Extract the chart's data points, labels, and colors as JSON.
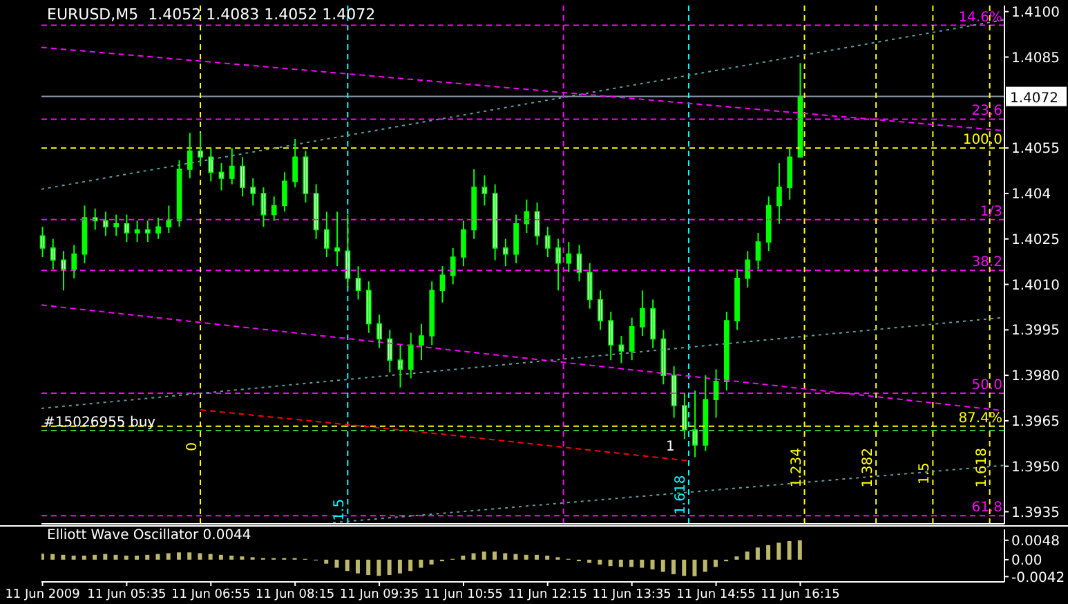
{
  "chart_data": [
    {
      "type": "candlestick",
      "title": "EURUSD,M5  1.4052 1.4083 1.4052 1.4072",
      "color": "#00ff00",
      "tick_labels": "y",
      "xlim": [
        "2009-06-11T04:14",
        "2009-06-11T19:29"
      ],
      "xticks": [
        "2009-06-11T04:15",
        "2009-06-11T05:35",
        "2009-06-11T06:55",
        "2009-06-11T08:15",
        "2009-06-11T09:35",
        "2009-06-11T10:55",
        "2009-06-11T12:15",
        "2009-06-11T13:35",
        "2009-06-11T14:55",
        "2009-06-11T16:15"
      ],
      "ylim": [
        1.3931,
        1.4102
      ],
      "yticks": [
        {
          "value": 1.41,
          "label": "1.4100"
        },
        1.4085,
        1.4055,
        1.404,
        1.4025,
        {
          "value": 1.401,
          "label": "1.4010"
        },
        1.3995,
        {
          "value": 1.398,
          "label": "1.3980"
        },
        1.3965,
        {
          "value": 1.395,
          "label": "1.3950"
        },
        1.3935
      ],
      "x": [
        "2009-06-11T04:15",
        "2009-06-11T04:25",
        "2009-06-11T04:35",
        "2009-06-11T04:45",
        "2009-06-11T04:55",
        "2009-06-11T05:05",
        "2009-06-11T05:15",
        "2009-06-11T05:25",
        "2009-06-11T05:35",
        "2009-06-11T05:45",
        "2009-06-11T05:55",
        "2009-06-11T06:05",
        "2009-06-11T06:15",
        "2009-06-11T06:25",
        "2009-06-11T06:35",
        "2009-06-11T06:45",
        "2009-06-11T06:55",
        "2009-06-11T07:05",
        "2009-06-11T07:15",
        "2009-06-11T07:25",
        "2009-06-11T07:35",
        "2009-06-11T07:45",
        "2009-06-11T07:55",
        "2009-06-11T08:05",
        "2009-06-11T08:15",
        "2009-06-11T08:25",
        "2009-06-11T08:35",
        "2009-06-11T08:45",
        "2009-06-11T08:55",
        "2009-06-11T09:05",
        "2009-06-11T09:15",
        "2009-06-11T09:25",
        "2009-06-11T09:35",
        "2009-06-11T09:45",
        "2009-06-11T09:55",
        "2009-06-11T10:05",
        "2009-06-11T10:15",
        "2009-06-11T10:25",
        "2009-06-11T10:35",
        "2009-06-11T10:45",
        "2009-06-11T10:55",
        "2009-06-11T11:05",
        "2009-06-11T11:15",
        "2009-06-11T11:25",
        "2009-06-11T11:35",
        "2009-06-11T11:45",
        "2009-06-11T11:55",
        "2009-06-11T12:05",
        "2009-06-11T12:15",
        "2009-06-11T12:25",
        "2009-06-11T12:35",
        "2009-06-11T12:45",
        "2009-06-11T12:55",
        "2009-06-11T13:05",
        "2009-06-11T13:15",
        "2009-06-11T13:25",
        "2009-06-11T13:35",
        "2009-06-11T13:45",
        "2009-06-11T13:55",
        "2009-06-11T14:05",
        "2009-06-11T14:15",
        "2009-06-11T14:25",
        "2009-06-11T14:35",
        "2009-06-11T14:45",
        "2009-06-11T14:55",
        "2009-06-11T15:05",
        "2009-06-11T15:15",
        "2009-06-11T15:25",
        "2009-06-11T15:35",
        "2009-06-11T15:45",
        "2009-06-11T15:55",
        "2009-06-11T16:05",
        "2009-06-11T16:15"
      ],
      "ohlc": [
        [
          1.4026,
          1.4029,
          1.4019,
          1.4022
        ],
        [
          1.4022,
          1.4025,
          1.4015,
          1.4018
        ],
        [
          1.4018,
          1.4021,
          1.4008,
          1.4015
        ],
        [
          1.4015,
          1.4023,
          1.4012,
          1.402
        ],
        [
          1.402,
          1.4036,
          1.4017,
          1.4032
        ],
        [
          1.4032,
          1.4035,
          1.4028,
          1.4031
        ],
        [
          1.4031,
          1.4034,
          1.4026,
          1.4029
        ],
        [
          1.4029,
          1.4033,
          1.4026,
          1.403
        ],
        [
          1.403,
          1.4033,
          1.4024,
          1.4027
        ],
        [
          1.4027,
          1.4031,
          1.4024,
          1.4028
        ],
        [
          1.4028,
          1.4031,
          1.4024,
          1.4027
        ],
        [
          1.4027,
          1.4032,
          1.4025,
          1.4029
        ],
        [
          1.4029,
          1.4036,
          1.4027,
          1.4031
        ],
        [
          1.4031,
          1.4051,
          1.4029,
          1.4048
        ],
        [
          1.4048,
          1.406,
          1.4045,
          1.4054
        ],
        [
          1.4054,
          1.406,
          1.4049,
          1.4052
        ],
        [
          1.4052,
          1.4055,
          1.4044,
          1.4047
        ],
        [
          1.4047,
          1.405,
          1.4041,
          1.4045
        ],
        [
          1.4045,
          1.4055,
          1.4043,
          1.4049
        ],
        [
          1.4049,
          1.4052,
          1.4039,
          1.4042
        ],
        [
          1.4042,
          1.4045,
          1.4036,
          1.404
        ],
        [
          1.404,
          1.4042,
          1.4029,
          1.4033
        ],
        [
          1.4033,
          1.4039,
          1.4031,
          1.4036
        ],
        [
          1.4036,
          1.4047,
          1.4034,
          1.4044
        ],
        [
          1.4044,
          1.4058,
          1.4042,
          1.4052
        ],
        [
          1.4052,
          1.4054,
          1.4037,
          1.404
        ],
        [
          1.404,
          1.4043,
          1.4025,
          1.4028
        ],
        [
          1.4028,
          1.4034,
          1.4019,
          1.4022
        ],
        [
          1.4022,
          1.4034,
          1.4016,
          1.4021
        ],
        [
          1.4021,
          1.4033,
          1.4009,
          1.4012
        ],
        [
          1.4012,
          1.4016,
          1.4005,
          1.4008
        ],
        [
          1.4008,
          1.4011,
          1.3994,
          1.3997
        ],
        [
          1.3997,
          1.4,
          1.3989,
          1.3992
        ],
        [
          1.3992,
          1.3995,
          1.3981,
          1.3985
        ],
        [
          1.3985,
          1.399,
          1.3976,
          1.3982
        ],
        [
          1.3982,
          1.3994,
          1.3979,
          1.399
        ],
        [
          1.399,
          1.3997,
          1.3985,
          1.3993
        ],
        [
          1.3993,
          1.4011,
          1.399,
          1.4008
        ],
        [
          1.4008,
          1.4016,
          1.4004,
          1.4013
        ],
        [
          1.4013,
          1.4022,
          1.401,
          1.4019
        ],
        [
          1.4019,
          1.4031,
          1.4016,
          1.4028
        ],
        [
          1.4028,
          1.4048,
          1.4025,
          1.4042
        ],
        [
          1.4042,
          1.4046,
          1.4036,
          1.404
        ],
        [
          1.404,
          1.4043,
          1.4018,
          1.4022
        ],
        [
          1.4022,
          1.4025,
          1.4016,
          1.402
        ],
        [
          1.402,
          1.4033,
          1.4017,
          1.403
        ],
        [
          1.403,
          1.4038,
          1.4027,
          1.4034
        ],
        [
          1.4034,
          1.4037,
          1.4023,
          1.4026
        ],
        [
          1.4026,
          1.4029,
          1.4019,
          1.4022
        ],
        [
          1.4022,
          1.4025,
          1.4008,
          1.4017
        ],
        [
          1.4017,
          1.4024,
          1.4014,
          1.402
        ],
        [
          1.402,
          1.4023,
          1.4011,
          1.4014
        ],
        [
          1.4014,
          1.4017,
          1.4002,
          1.4005
        ],
        [
          1.4005,
          1.4008,
          1.3995,
          1.3998
        ],
        [
          1.3998,
          1.4001,
          1.3985,
          1.399
        ],
        [
          1.399,
          1.3993,
          1.3984,
          1.3988
        ],
        [
          1.3988,
          1.3999,
          1.3985,
          1.3996
        ],
        [
          1.3996,
          1.4008,
          1.3993,
          1.4002
        ],
        [
          1.4002,
          1.4005,
          1.3989,
          1.3992
        ],
        [
          1.3992,
          1.3995,
          1.3977,
          1.398
        ],
        [
          1.398,
          1.3983,
          1.3966,
          1.397
        ],
        [
          1.397,
          1.3974,
          1.3959,
          1.3962
        ],
        [
          1.3962,
          1.3975,
          1.3953,
          1.3957
        ],
        [
          1.3957,
          1.398,
          1.3955,
          1.3972
        ],
        [
          1.3972,
          1.3982,
          1.3966,
          1.3978
        ],
        [
          1.3978,
          1.4001,
          1.3975,
          1.3998
        ],
        [
          1.3998,
          1.4015,
          1.3995,
          1.4012
        ],
        [
          1.4012,
          1.4021,
          1.4009,
          1.4018
        ],
        [
          1.4018,
          1.4027,
          1.4015,
          1.4024
        ],
        [
          1.4024,
          1.4039,
          1.4021,
          1.4036
        ],
        [
          1.4036,
          1.405,
          1.403,
          1.4042
        ],
        [
          1.4042,
          1.4055,
          1.4038,
          1.4052
        ],
        [
          1.4052,
          1.4083,
          1.4052,
          1.4072
        ]
      ],
      "series": [
        {
          "type": "line",
          "color": "#5f9ea0",
          "line_style": "dotted",
          "x": [
            "2009-06-11T04:14",
            "2009-06-11T19:29"
          ],
          "values": [
            1.40414,
            1.40973
          ]
        },
        {
          "type": "line",
          "color": "#5f9ea0",
          "line_style": "dotted",
          "x": [
            "2009-06-11T04:14",
            "2009-06-11T19:29"
          ],
          "values": [
            1.39691,
            1.39991
          ]
        },
        {
          "type": "line",
          "color": "#5f9ea0",
          "line_style": "dotted",
          "x": [
            "2009-06-11T08:51",
            "2009-06-11T19:29"
          ],
          "values": [
            1.39314,
            1.39503
          ]
        },
        {
          "type": "line",
          "color": "#ff00ff",
          "line_style": "dashed",
          "x": [
            "2009-06-11T04:14",
            "2009-06-11T19:29"
          ],
          "values": [
            1.40882,
            1.40607
          ]
        },
        {
          "type": "line",
          "color": "#ff00ff",
          "line_style": "dashed",
          "x": [
            "2009-06-11T04:14",
            "2009-06-11T19:29"
          ],
          "values": [
            1.40032,
            1.39683
          ]
        },
        {
          "type": "line",
          "color": "#ff0000",
          "line_style": "dashed",
          "x": [
            "2009-06-11T06:45",
            "2009-06-11T10:37",
            "2009-06-11T14:29"
          ],
          "values": [
            1.39686,
            1.39605,
            1.39518
          ]
        }
      ],
      "ref_lines": [
        {
          "axis": "y",
          "value": 1.40955,
          "color": "#ff00ff",
          "line_style": "dashed"
        },
        {
          "axis": "y",
          "value": 1.4072,
          "label": "1.4072",
          "color": "#8a96a8",
          "line_style": "solid"
        },
        {
          "axis": "y",
          "value": 1.40645,
          "color": "#ff00ff",
          "line_style": "dashed"
        },
        {
          "axis": "y",
          "value": 1.4055,
          "color": "#ffff00",
          "line_style": "dashed"
        },
        {
          "axis": "y",
          "value": 1.40314,
          "color": "#ff00ff",
          "line_style": "dashed"
        },
        {
          "axis": "y",
          "value": 1.40146,
          "color": "#ff00ff",
          "line_style": "dashed"
        },
        {
          "axis": "y",
          "value": 1.39741,
          "color": "#ff00ff",
          "line_style": "dashed"
        },
        {
          "axis": "y",
          "value": 1.39632,
          "color": "#ffff00",
          "line_style": "dashed"
        },
        {
          "axis": "y",
          "value": 1.39618,
          "color": "#32cd32",
          "line_style": "dashed"
        },
        {
          "axis": "y",
          "value": 1.39337,
          "color": "#ff00ff",
          "line_style": "dashed"
        },
        {
          "axis": "x",
          "value": "2009-06-11T06:45",
          "color": "#ffff00",
          "line_style": "dashed"
        },
        {
          "axis": "x",
          "value": "2009-06-11T09:05",
          "color": "#00ffff",
          "line_style": "dashed"
        },
        {
          "axis": "x",
          "value": "2009-06-11T12:30",
          "color": "#ff00ff",
          "line_style": "dashed"
        },
        {
          "axis": "x",
          "value": "2009-06-11T14:29",
          "color": "#00ffff",
          "line_style": "dashed"
        },
        {
          "axis": "x",
          "value": "2009-06-11T16:19",
          "color": "#ffff00",
          "line_style": "dashed"
        },
        {
          "axis": "x",
          "value": "2009-06-11T17:27",
          "color": "#ffff00",
          "line_style": "dashed"
        },
        {
          "axis": "x",
          "value": "2009-06-11T18:21",
          "color": "#ffff00",
          "line_style": "dashed"
        },
        {
          "axis": "x",
          "value": "2009-06-11T19:15",
          "color": "#ffff00",
          "line_style": "dashed"
        }
      ],
      "annotations": [
        {
          "text": "14.6%",
          "x": "2009-06-11T19:27",
          "y": 1.40955
        },
        {
          "text": "23.6",
          "x": "2009-06-11T19:27",
          "y": 1.40645
        },
        {
          "text": "100.0",
          "x": "2009-06-11T19:27",
          "y": 1.4055
        },
        {
          "text": "1/3",
          "x": "2009-06-11T19:27",
          "y": 1.40314
        },
        {
          "text": "38.2",
          "x": "2009-06-11T19:27",
          "y": 1.40146
        },
        {
          "text": "50.0",
          "x": "2009-06-11T19:27",
          "y": 1.39741
        },
        {
          "text": "87.4%",
          "x": "2009-06-11T19:27",
          "y": 1.39632
        },
        {
          "text": "#15026955 buy",
          "x": "2009-06-11T04:16",
          "y": 1.39618
        },
        {
          "text": "61.8",
          "x": "2009-06-11T19:27",
          "y": 1.39337
        },
        {
          "text": "0",
          "x": "2009-06-11T06:45",
          "y": 1.3955
        },
        {
          "text": "1.5",
          "x": "2009-06-11T09:05",
          "y": 1.3932
        },
        {
          "text": "1.618",
          "x": "2009-06-11T14:29",
          "y": 1.3934
        },
        {
          "text": "1.234",
          "x": "2009-06-11T16:19",
          "y": 1.3943
        },
        {
          "text": "1.382",
          "x": "2009-06-11T17:27",
          "y": 1.3943
        },
        {
          "text": "1.5",
          "x": "2009-06-11T18:21",
          "y": 1.3944
        },
        {
          "text": "1.618",
          "x": "2009-06-11T19:15",
          "y": 1.3943
        },
        "1"
      ]
    },
    {
      "type": "bar",
      "title": "Elliott Wave Oscillator 0.0044",
      "color": "#bdb76b",
      "xlim": [
        "2009-06-11T04:14",
        "2009-06-11T19:29"
      ],
      "xticks": [
        {
          "value": "2009-06-11T04:15",
          "label": "11 Jun 2009"
        },
        {
          "value": "2009-06-11T05:35",
          "label": "11 Jun 05:35"
        },
        {
          "value": "2009-06-11T06:55",
          "label": "11 Jun 06:55"
        },
        {
          "value": "2009-06-11T08:15",
          "label": "11 Jun 08:15"
        },
        {
          "value": "2009-06-11T09:35",
          "label": "11 Jun 09:35"
        },
        {
          "value": "2009-06-11T10:55",
          "label": "11 Jun 10:55"
        },
        {
          "value": "2009-06-11T12:15",
          "label": "11 Jun 12:15"
        },
        {
          "value": "2009-06-11T13:35",
          "label": "11 Jun 13:35"
        },
        {
          "value": "2009-06-11T14:55",
          "label": "11 Jun 14:55"
        },
        {
          "value": "2009-06-11T16:15",
          "label": "11 Jun 16:15"
        }
      ],
      "ylim": [
        -0.0055,
        0.0075
      ],
      "yticks": [
        0.0048,
        {
          "value": 0,
          "label": "0.00"
        },
        -0.0042
      ],
      "x": [
        "2009-06-11T04:15",
        "2009-06-11T04:25",
        "2009-06-11T04:35",
        "2009-06-11T04:45",
        "2009-06-11T04:55",
        "2009-06-11T05:05",
        "2009-06-11T05:15",
        "2009-06-11T05:25",
        "2009-06-11T05:35",
        "2009-06-11T05:45",
        "2009-06-11T05:55",
        "2009-06-11T06:05",
        "2009-06-11T06:15",
        "2009-06-11T06:25",
        "2009-06-11T06:35",
        "2009-06-11T06:45",
        "2009-06-11T06:55",
        "2009-06-11T07:05",
        "2009-06-11T07:15",
        "2009-06-11T07:25",
        "2009-06-11T07:35",
        "2009-06-11T07:45",
        "2009-06-11T07:55",
        "2009-06-11T08:05",
        "2009-06-11T08:15",
        "2009-06-11T08:25",
        "2009-06-11T08:35",
        "2009-06-11T08:45",
        "2009-06-11T08:55",
        "2009-06-11T09:05",
        "2009-06-11T09:15",
        "2009-06-11T09:25",
        "2009-06-11T09:35",
        "2009-06-11T09:45",
        "2009-06-11T09:55",
        "2009-06-11T10:05",
        "2009-06-11T10:15",
        "2009-06-11T10:25",
        "2009-06-11T10:35",
        "2009-06-11T10:45",
        "2009-06-11T10:55",
        "2009-06-11T11:05",
        "2009-06-11T11:15",
        "2009-06-11T11:25",
        "2009-06-11T11:35",
        "2009-06-11T11:45",
        "2009-06-11T11:55",
        "2009-06-11T12:05",
        "2009-06-11T12:15",
        "2009-06-11T12:25",
        "2009-06-11T12:35",
        "2009-06-11T12:45",
        "2009-06-11T12:55",
        "2009-06-11T13:05",
        "2009-06-11T13:15",
        "2009-06-11T13:25",
        "2009-06-11T13:35",
        "2009-06-11T13:45",
        "2009-06-11T13:55",
        "2009-06-11T14:05",
        "2009-06-11T14:15",
        "2009-06-11T14:25",
        "2009-06-11T14:35",
        "2009-06-11T14:45",
        "2009-06-11T14:55",
        "2009-06-11T15:05",
        "2009-06-11T15:15",
        "2009-06-11T15:25",
        "2009-06-11T15:35",
        "2009-06-11T15:45",
        "2009-06-11T15:55",
        "2009-06-11T16:05",
        "2009-06-11T16:15"
      ],
      "values": [
        0.0015,
        0.0014,
        0.0012,
        0.001,
        0.001,
        0.0012,
        0.0014,
        0.0012,
        0.001,
        0.001,
        0.0012,
        0.0014,
        0.0016,
        0.0018,
        0.0018,
        0.0016,
        0.0014,
        0.0012,
        0.001,
        0.0008,
        0.0006,
        0.0004,
        0.0004,
        0.0004,
        0.0004,
        0.0002,
        -0.0002,
        -0.001,
        -0.002,
        -0.0028,
        -0.0034,
        -0.0038,
        -0.004,
        -0.0038,
        -0.0034,
        -0.0028,
        -0.002,
        -0.0012,
        -0.0004,
        0.0002,
        0.001,
        0.0016,
        0.002,
        0.002,
        0.0016,
        0.0014,
        0.0012,
        0.0012,
        0.001,
        0.0006,
        0.0002,
        -0.0004,
        -0.0008,
        -0.0012,
        -0.0016,
        -0.0018,
        -0.0018,
        -0.002,
        -0.0024,
        -0.003,
        -0.0036,
        -0.004,
        -0.0041,
        -0.003,
        -0.0018,
        -0.0004,
        0.0008,
        0.002,
        0.003,
        0.0036,
        0.0042,
        0.0046,
        0.0048
      ]
    }
  ]
}
